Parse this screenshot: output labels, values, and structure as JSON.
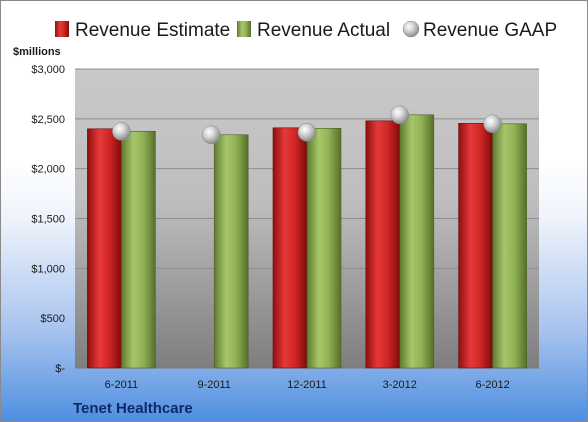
{
  "chart_data": {
    "type": "bar",
    "ylabel": "$millions",
    "categories": [
      "6-2011",
      "9-2011",
      "12-2011",
      "3-2012",
      "6-2012"
    ],
    "series": [
      {
        "name": "Revenue Estimate",
        "kind": "bar",
        "color": "#cc1f1f",
        "values": [
          2400,
          null,
          2410,
          2480,
          2455
        ]
      },
      {
        "name": "Revenue Actual",
        "kind": "bar",
        "color": "#8aac4e",
        "values": [
          2375,
          2340,
          2405,
          2540,
          2450
        ]
      },
      {
        "name": "Revenue GAAP",
        "kind": "marker",
        "color": "#c7c7c7",
        "values": [
          2375,
          2340,
          2365,
          2540,
          2450
        ]
      }
    ],
    "ylim": [
      0,
      3000
    ],
    "yticks": [
      0,
      500,
      1000,
      1500,
      2000,
      2500,
      3000
    ],
    "ytick_labels": [
      "$-",
      "$500",
      "$1,000",
      "$1,500",
      "$2,000",
      "$2,500",
      "$3,000"
    ],
    "grid": true,
    "legend_position": "top"
  },
  "company": "Tenet Healthcare"
}
